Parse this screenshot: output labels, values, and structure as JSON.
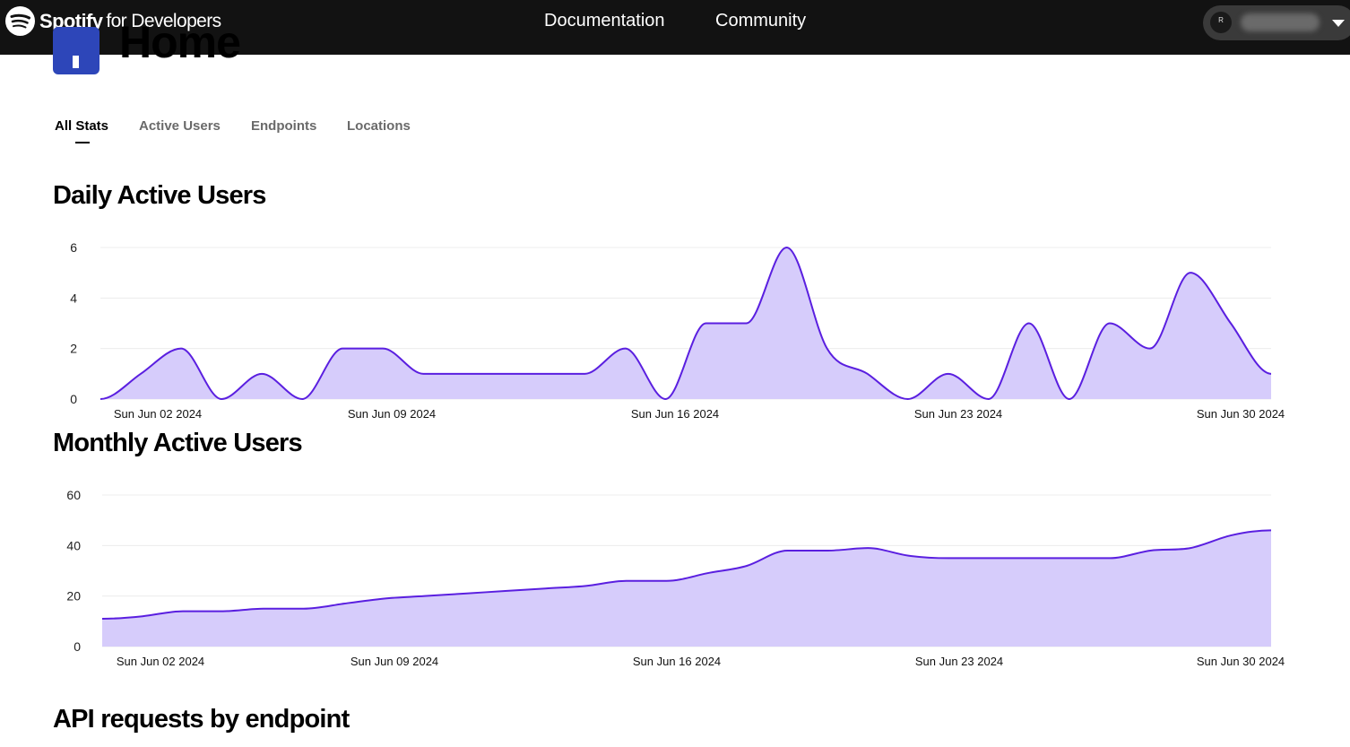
{
  "header": {
    "brand_name": "Spotify",
    "brand_sub": "for Developers",
    "nav": [
      "Documentation",
      "Community"
    ],
    "user_initial": "R"
  },
  "page": {
    "title": "Home",
    "tabs": [
      "All Stats",
      "Active Users",
      "Endpoints",
      "Locations"
    ],
    "active_tab": 0
  },
  "sections": {
    "dau_title": "Daily Active Users",
    "mau_title": "Monthly Active Users",
    "api_title": "API requests by endpoint"
  },
  "colors": {
    "line": "#5a1fe0",
    "fill": "#d6ccfb",
    "grid": "#ececec",
    "tile": "#2d46b9"
  },
  "chart_data": [
    {
      "type": "area",
      "title": "Daily Active Users",
      "x": [
        "2024-06-01",
        "2024-06-02",
        "2024-06-03",
        "2024-06-04",
        "2024-06-05",
        "2024-06-06",
        "2024-06-07",
        "2024-06-08",
        "2024-06-09",
        "2024-06-10",
        "2024-06-11",
        "2024-06-12",
        "2024-06-13",
        "2024-06-14",
        "2024-06-15",
        "2024-06-16",
        "2024-06-17",
        "2024-06-18",
        "2024-06-19",
        "2024-06-20",
        "2024-06-21",
        "2024-06-22",
        "2024-06-23",
        "2024-06-24",
        "2024-06-25",
        "2024-06-26",
        "2024-06-27",
        "2024-06-28",
        "2024-06-29",
        "2024-06-30"
      ],
      "values": [
        0,
        1,
        2,
        0,
        1,
        0,
        2,
        2,
        1,
        1,
        1,
        1,
        1,
        2,
        0,
        3,
        3,
        6,
        2,
        1,
        0,
        1,
        0,
        3,
        0,
        3,
        2,
        5,
        3,
        1
      ],
      "x_ticks": [
        "Sun Jun 02 2024",
        "Sun Jun 09 2024",
        "Sun Jun 16 2024",
        "Sun Jun 23 2024",
        "Sun Jun 30 2024"
      ],
      "y_ticks": [
        0,
        2,
        4,
        6
      ],
      "ylim": [
        0,
        6
      ]
    },
    {
      "type": "area",
      "title": "Monthly Active Users",
      "x": [
        "2024-06-01",
        "2024-06-02",
        "2024-06-03",
        "2024-06-04",
        "2024-06-05",
        "2024-06-06",
        "2024-06-07",
        "2024-06-08",
        "2024-06-09",
        "2024-06-10",
        "2024-06-11",
        "2024-06-12",
        "2024-06-13",
        "2024-06-14",
        "2024-06-15",
        "2024-06-16",
        "2024-06-17",
        "2024-06-18",
        "2024-06-19",
        "2024-06-20",
        "2024-06-21",
        "2024-06-22",
        "2024-06-23",
        "2024-06-24",
        "2024-06-25",
        "2024-06-26",
        "2024-06-27",
        "2024-06-28",
        "2024-06-29",
        "2024-06-30"
      ],
      "values": [
        11,
        12,
        14,
        14,
        15,
        15,
        17,
        19,
        20,
        21,
        22,
        23,
        24,
        26,
        26,
        29,
        32,
        38,
        38,
        39,
        36,
        35,
        35,
        35,
        35,
        35,
        38,
        39,
        44,
        46
      ],
      "x_ticks": [
        "Sun Jun 02 2024",
        "Sun Jun 09 2024",
        "Sun Jun 16 2024",
        "Sun Jun 23 2024",
        "Sun Jun 30 2024"
      ],
      "y_ticks": [
        0,
        20,
        40,
        60
      ],
      "ylim": [
        0,
        60
      ]
    }
  ]
}
